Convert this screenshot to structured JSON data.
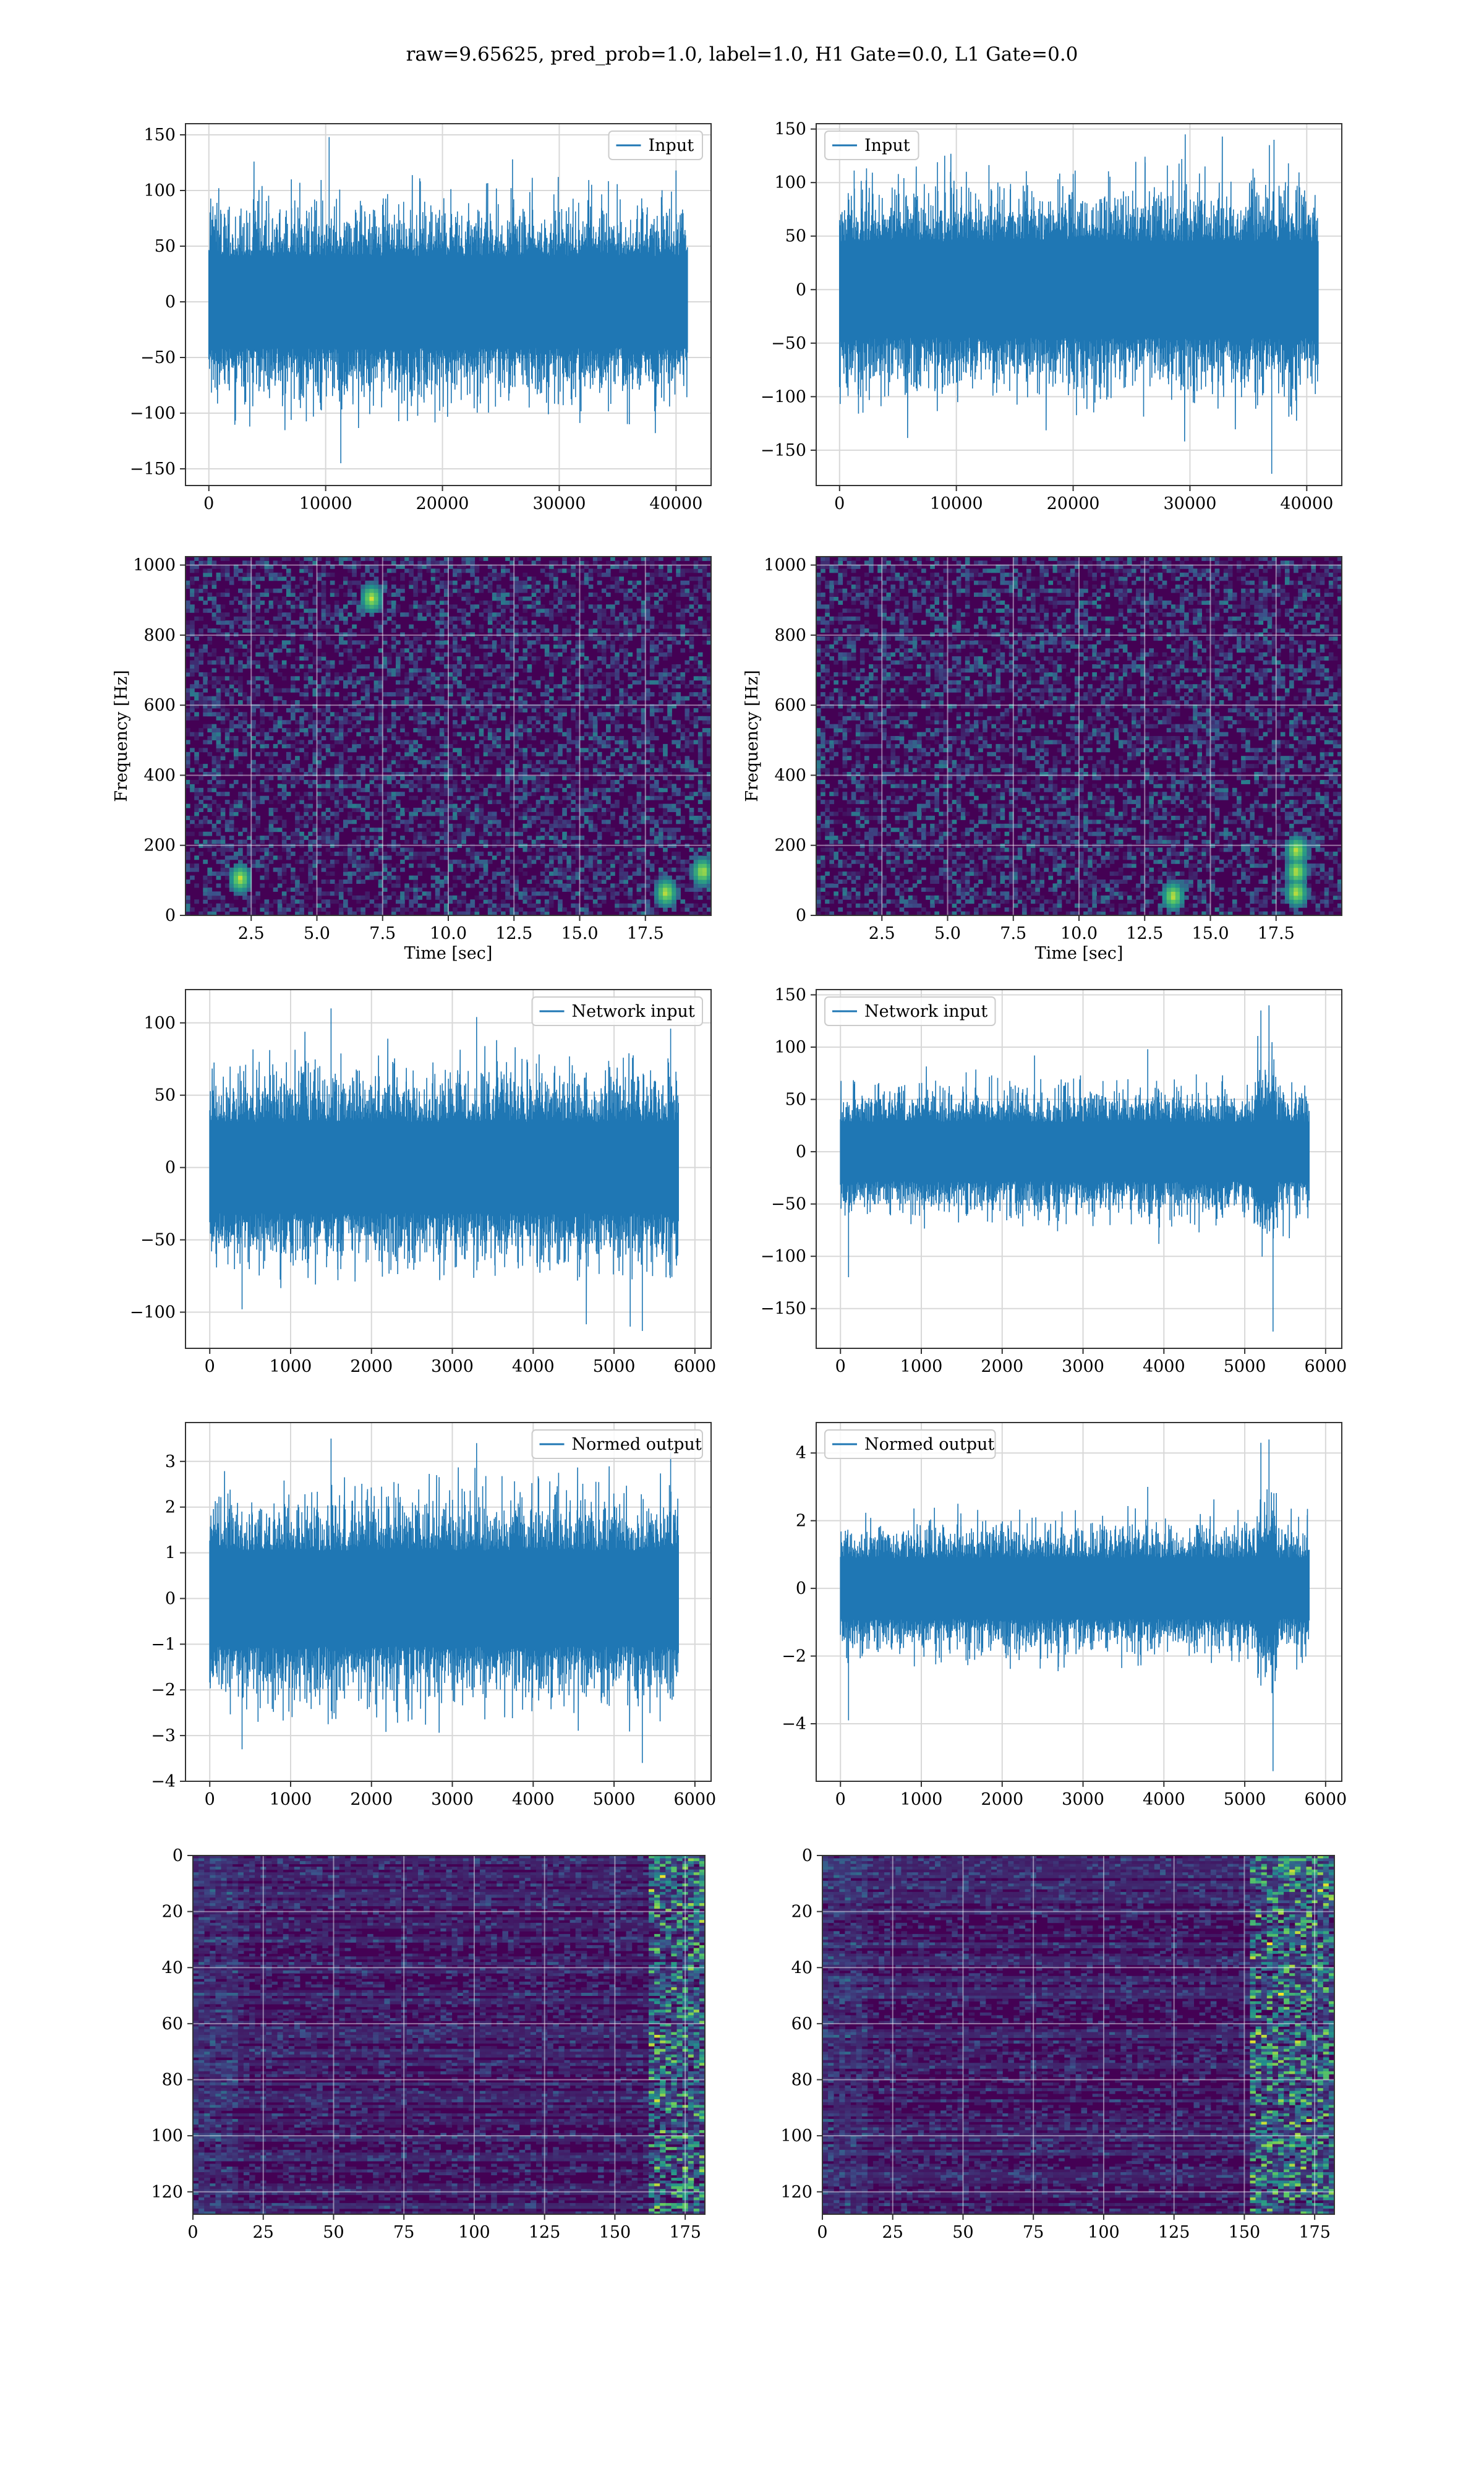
{
  "figure": {
    "title": "raw=9.65625, pred_prob=1.0, label=1.0, H1 Gate=0.0, L1 Gate=0.0"
  },
  "colors": {
    "line": "#1f77b4",
    "grid": "#d8d8d8",
    "axes": "#333333",
    "viridis_low": "#440154",
    "viridis_mid": "#21918c",
    "viridis_high": "#fde725"
  },
  "chart_data": [
    {
      "id": "h1-input",
      "type": "line",
      "title": "",
      "xlabel": "",
      "ylabel": "",
      "legend": "Input",
      "legend_position": "top-right",
      "xlim": [
        -2000,
        43000
      ],
      "ylim": [
        -165,
        160
      ],
      "xticks": [
        0,
        10000,
        20000,
        30000,
        40000
      ],
      "yticks": [
        -150,
        -100,
        -50,
        0,
        50,
        100,
        150
      ],
      "n_points": 40960,
      "envelope": 55,
      "spikes": [
        [
          11300,
          -145
        ],
        [
          10300,
          148
        ],
        [
          3500,
          -112
        ],
        [
          26000,
          128
        ],
        [
          40000,
          118
        ],
        [
          36000,
          -110
        ],
        [
          17000,
          -107
        ]
      ],
      "grid": true
    },
    {
      "id": "l1-input",
      "type": "line",
      "title": "",
      "xlabel": "",
      "ylabel": "",
      "legend": "Input",
      "legend_position": "top-left",
      "xlim": [
        -2000,
        43000
      ],
      "ylim": [
        -183,
        155
      ],
      "xticks": [
        0,
        10000,
        20000,
        30000,
        40000
      ],
      "yticks": [
        -150,
        -100,
        -50,
        0,
        50,
        100,
        150
      ],
      "n_points": 40960,
      "envelope": 60,
      "spikes": [
        [
          37000,
          -172
        ],
        [
          37200,
          140
        ],
        [
          36800,
          135
        ],
        [
          29300,
          122
        ],
        [
          2000,
          -115
        ],
        [
          9500,
          110
        ],
        [
          20000,
          108
        ]
      ],
      "grid": true
    },
    {
      "id": "h1-spectrogram",
      "type": "heatmap",
      "title": "",
      "xlabel": "Time [sec]",
      "ylabel": "Frequency [Hz]",
      "xlim": [
        0,
        20
      ],
      "ylim": [
        0,
        1024
      ],
      "xticks": [
        2.5,
        5.0,
        7.5,
        10.0,
        12.5,
        15.0,
        17.5
      ],
      "xticklabels": [
        "2.5",
        "5.0",
        "7.5",
        "10.0",
        "12.5",
        "15.0",
        "17.5"
      ],
      "yticks": [
        0,
        200,
        400,
        600,
        800,
        1000
      ],
      "hotspots": [
        [
          18.2,
          60
        ],
        [
          19.6,
          120
        ],
        [
          2.0,
          100
        ],
        [
          7.0,
          900
        ]
      ],
      "grid": true
    },
    {
      "id": "l1-spectrogram",
      "type": "heatmap",
      "title": "",
      "xlabel": "Time [sec]",
      "ylabel": "Frequency [Hz]",
      "xlim": [
        0,
        20
      ],
      "ylim": [
        0,
        1024
      ],
      "xticks": [
        2.5,
        5.0,
        7.5,
        10.0,
        12.5,
        15.0,
        17.5
      ],
      "xticklabels": [
        "2.5",
        "5.0",
        "7.5",
        "10.0",
        "12.5",
        "15.0",
        "17.5"
      ],
      "yticks": [
        0,
        200,
        400,
        600,
        800,
        1000
      ],
      "hotspots": [
        [
          18.2,
          60
        ],
        [
          18.2,
          120
        ],
        [
          18.2,
          180
        ],
        [
          13.5,
          50
        ]
      ],
      "grid": true
    },
    {
      "id": "h1-network-input",
      "type": "line",
      "title": "",
      "xlabel": "",
      "ylabel": "",
      "legend": "Network input",
      "legend_position": "top-right",
      "xlim": [
        -300,
        6200
      ],
      "ylim": [
        -125,
        123
      ],
      "xticks": [
        0,
        1000,
        2000,
        3000,
        4000,
        5000,
        6000
      ],
      "yticks": [
        -100,
        -50,
        0,
        50,
        100
      ],
      "n_points": 5800,
      "envelope": 42,
      "spikes": [
        [
          5350,
          -113
        ],
        [
          5200,
          -110
        ],
        [
          1500,
          110
        ],
        [
          400,
          -98
        ],
        [
          3300,
          104
        ],
        [
          5700,
          96
        ]
      ],
      "grid": true
    },
    {
      "id": "l1-network-input",
      "type": "line",
      "title": "",
      "xlabel": "",
      "ylabel": "",
      "legend": "Network input",
      "legend_position": "top-left",
      "xlim": [
        -300,
        6200
      ],
      "ylim": [
        -188,
        155
      ],
      "xticks": [
        0,
        1000,
        2000,
        3000,
        4000,
        5000,
        6000
      ],
      "yticks": [
        -150,
        -100,
        -50,
        0,
        50,
        100,
        150
      ],
      "n_points": 5800,
      "envelope": 38,
      "spikes": [
        [
          5350,
          -172
        ],
        [
          5300,
          140
        ],
        [
          5200,
          135
        ],
        [
          100,
          -120
        ],
        [
          3800,
          98
        ],
        [
          2400,
          92
        ]
      ],
      "burst": [
        5150,
        5400
      ],
      "grid": true
    },
    {
      "id": "h1-normed-output",
      "type": "line",
      "title": "",
      "xlabel": "",
      "ylabel": "",
      "legend": "Normed output",
      "legend_position": "top-right",
      "xlim": [
        -300,
        6200
      ],
      "ylim": [
        -4,
        3.85
      ],
      "xticks": [
        0,
        1000,
        2000,
        3000,
        4000,
        5000,
        6000
      ],
      "yticks": [
        -4,
        -3,
        -2,
        -1,
        0,
        1,
        2,
        3
      ],
      "n_points": 5800,
      "envelope": 1.4,
      "spikes": [
        [
          5350,
          -3.6
        ],
        [
          1500,
          3.5
        ],
        [
          400,
          -3.3
        ],
        [
          3300,
          3.4
        ],
        [
          5700,
          3.2
        ]
      ],
      "grid": true
    },
    {
      "id": "l1-normed-output",
      "type": "line",
      "title": "",
      "xlabel": "",
      "ylabel": "",
      "legend": "Normed output",
      "legend_position": "top-left",
      "xlim": [
        -300,
        6200
      ],
      "ylim": [
        -5.7,
        4.9
      ],
      "xticks": [
        0,
        1000,
        2000,
        3000,
        4000,
        5000,
        6000
      ],
      "yticks": [
        -4,
        -2,
        0,
        2,
        4
      ],
      "n_points": 5800,
      "envelope": 1.2,
      "spikes": [
        [
          5350,
          -5.4
        ],
        [
          5300,
          4.4
        ],
        [
          5200,
          4.3
        ],
        [
          100,
          -3.9
        ],
        [
          3800,
          3.0
        ]
      ],
      "burst": [
        5150,
        5400
      ],
      "grid": true
    },
    {
      "id": "h1-features",
      "type": "heatmap",
      "title": "",
      "xlabel": "",
      "ylabel": "",
      "xlim": [
        0,
        182
      ],
      "ylim": [
        128,
        0
      ],
      "xticks": [
        0,
        25,
        50,
        75,
        100,
        125,
        150,
        175
      ],
      "yticks": [
        0,
        20,
        40,
        60,
        80,
        100,
        120
      ],
      "active_from_col": 160,
      "grid": true
    },
    {
      "id": "l1-features",
      "type": "heatmap",
      "title": "",
      "xlabel": "",
      "ylabel": "",
      "xlim": [
        0,
        182
      ],
      "ylim": [
        128,
        0
      ],
      "xticks": [
        0,
        25,
        50,
        75,
        100,
        125,
        150,
        175
      ],
      "yticks": [
        0,
        20,
        40,
        60,
        80,
        100,
        120
      ],
      "active_from_col": 150,
      "grid": true
    }
  ]
}
